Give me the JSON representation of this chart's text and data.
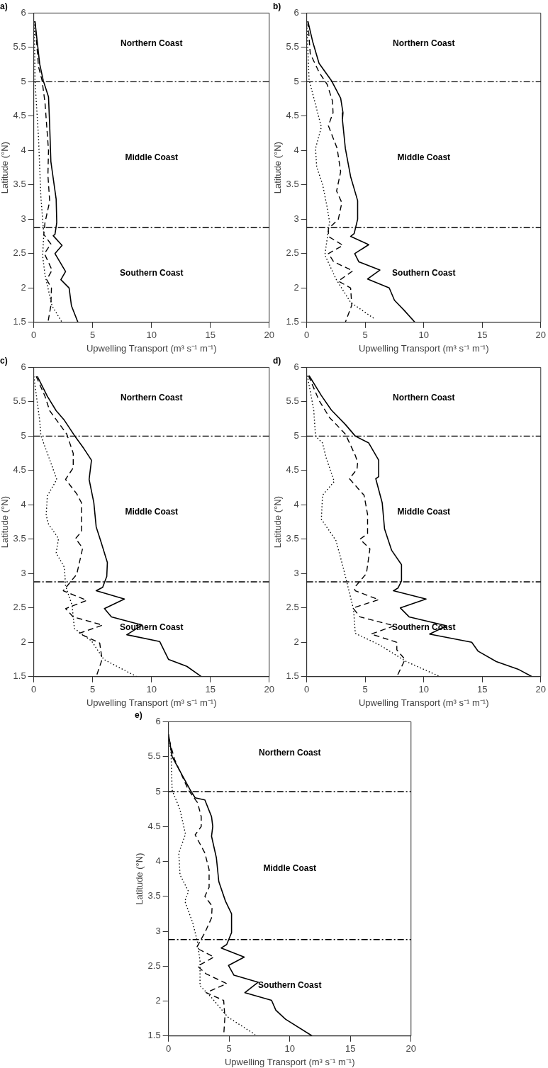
{
  "chart_data": [
    {
      "type": "line",
      "title": "a)",
      "xlabel": "Upwelling Transport (m³ s⁻¹ m⁻¹)",
      "ylabel": "Latitude (°N)",
      "xlim": [
        0,
        20
      ],
      "ylim": [
        1.5,
        6
      ],
      "xticks": [
        0,
        5,
        10,
        15,
        20
      ],
      "yticks": [
        1.5,
        2,
        2.5,
        3,
        3.5,
        4,
        4.5,
        5,
        5.5,
        6
      ],
      "grid": false,
      "ref_lines": [
        {
          "axis": "y",
          "value": 5
        },
        {
          "axis": "y",
          "value": 2.88
        }
      ],
      "annotations": [
        "Northern Coast",
        "Middle Coast",
        "Southern Coast"
      ],
      "series": [
        {
          "color": "#000000",
          "line_style": "solid",
          "x": [
            0.1,
            0.3,
            0.5,
            0.8,
            1.25,
            1.35,
            1.45,
            1.9,
            1.95,
            1.8,
            1.65,
            2.4,
            1.8,
            2.7,
            2.3,
            3.0,
            3.2,
            3.75
          ],
          "values": [
            5.88,
            5.57,
            5.26,
            5.02,
            4.78,
            4.36,
            3.84,
            3.29,
            2.95,
            2.78,
            2.76,
            2.62,
            2.5,
            2.24,
            2.12,
            2.0,
            1.74,
            1.5
          ]
        },
        {
          "color": "#000000",
          "line_style": "dashed",
          "x": [
            0.1,
            0.4,
            0.7,
            0.95,
            1.25,
            1.2,
            1.35,
            0.95,
            0.85,
            1.45,
            0.9,
            1.55,
            1.1,
            1.5,
            1.45,
            1.2
          ],
          "values": [
            5.88,
            5.22,
            5.02,
            4.7,
            4.0,
            3.64,
            3.26,
            2.95,
            2.78,
            2.64,
            2.5,
            2.26,
            2.12,
            2.0,
            1.74,
            1.5
          ]
        },
        {
          "color": "#000000",
          "line_style": "dotted",
          "x": [
            0.05,
            0.1,
            0.4,
            0.6,
            0.85,
            0.75,
            0.95,
            1.55,
            2.4
          ],
          "values": [
            5.88,
            5.02,
            4.19,
            3.33,
            2.78,
            2.47,
            2.19,
            1.74,
            1.5
          ]
        }
      ]
    },
    {
      "type": "line",
      "title": "b)",
      "xlabel": "Upwelling Transport (m³ s⁻¹ m⁻¹)",
      "ylabel": "Latitude (°N)",
      "xlim": [
        0,
        20
      ],
      "ylim": [
        1.5,
        6
      ],
      "xticks": [
        0,
        5,
        10,
        15,
        20
      ],
      "yticks": [
        1.5,
        2,
        2.5,
        3,
        3.5,
        4,
        4.5,
        5,
        5.5,
        6
      ],
      "grid": false,
      "ref_lines": [
        {
          "axis": "y",
          "value": 5
        },
        {
          "axis": "y",
          "value": 2.88
        }
      ],
      "annotations": [
        "Northern Coast",
        "Middle Coast",
        "Southern Coast"
      ],
      "series": [
        {
          "color": "#000000",
          "line_style": "solid",
          "x": [
            0.1,
            0.5,
            1.05,
            2.1,
            2.9,
            3.1,
            3.05,
            3.3,
            3.75,
            4.35,
            4.35,
            4.05,
            3.75,
            5.3,
            4.1,
            4.45,
            6.25,
            5.2,
            7.05,
            7.5,
            8.3,
            9.25
          ],
          "values": [
            5.88,
            5.59,
            5.27,
            5.02,
            4.76,
            4.55,
            4.45,
            4.03,
            3.62,
            3.27,
            3.0,
            2.79,
            2.75,
            2.63,
            2.5,
            2.38,
            2.26,
            2.13,
            2.0,
            1.82,
            1.68,
            1.5
          ]
        },
        {
          "color": "#000000",
          "line_style": "dashed",
          "x": [
            0.1,
            0.3,
            1.05,
            1.75,
            2.2,
            2.25,
            1.85,
            2.6,
            2.9,
            2.55,
            3.0,
            2.7,
            1.85,
            1.85,
            3.1,
            1.85,
            2.3,
            3.95,
            2.7,
            3.75,
            3.85,
            3.3
          ],
          "values": [
            5.88,
            5.41,
            5.14,
            4.96,
            4.72,
            4.55,
            4.36,
            4.03,
            3.69,
            3.41,
            3.24,
            3.0,
            2.86,
            2.75,
            2.62,
            2.5,
            2.38,
            2.25,
            2.1,
            2.0,
            1.75,
            1.5
          ]
        },
        {
          "color": "#000000",
          "line_style": "dotted",
          "x": [
            0,
            0.2,
            1.25,
            0.75,
            0.85,
            1.35,
            1.75,
            1.95,
            1.55,
            2.5,
            3.75,
            5.8
          ],
          "values": [
            5.88,
            5.03,
            4.34,
            4.03,
            3.76,
            3.51,
            3.17,
            2.96,
            2.48,
            2.13,
            1.79,
            1.55
          ]
        }
      ]
    },
    {
      "type": "line",
      "title": "c)",
      "xlabel": "Upwelling Transport (m³ s⁻¹ m⁻¹)",
      "ylabel": "Latitude (°N)",
      "xlim": [
        0,
        20
      ],
      "ylim": [
        1.5,
        6
      ],
      "xticks": [
        0,
        5,
        10,
        15,
        20
      ],
      "yticks": [
        1.5,
        2,
        2.5,
        3,
        3.5,
        4,
        4.5,
        5,
        5.5,
        6
      ],
      "grid": false,
      "ref_lines": [
        {
          "axis": "y",
          "value": 5
        },
        {
          "axis": "y",
          "value": 2.88
        }
      ],
      "annotations": [
        "Northern Coast",
        "Middle Coast",
        "Southern Coast"
      ],
      "series": [
        {
          "color": "#000000",
          "line_style": "solid",
          "x": [
            0.3,
            1.15,
            1.9,
            2.6,
            3.45,
            4.25,
            4.9,
            4.7,
            5.1,
            5.3,
            5.75,
            6.25,
            6.2,
            5.85,
            5.3,
            7.7,
            6.0,
            6.6,
            9.2,
            7.9,
            10.7,
            11.45,
            13.0,
            14.25
          ],
          "values": [
            5.87,
            5.58,
            5.37,
            5.23,
            5.01,
            4.82,
            4.65,
            4.37,
            4.03,
            3.68,
            3.44,
            3.16,
            2.96,
            2.8,
            2.75,
            2.63,
            2.49,
            2.37,
            2.25,
            2.11,
            2.01,
            1.75,
            1.65,
            1.5
          ]
        },
        {
          "color": "#000000",
          "line_style": "dashed",
          "x": [
            0.2,
            0.95,
            1.35,
            2.8,
            3.35,
            3.35,
            2.7,
            3.65,
            4.05,
            4.05,
            3.55,
            4.15,
            3.65,
            2.5,
            4.5,
            2.7,
            3.35,
            5.85,
            3.85,
            5.6,
            5.8,
            5.3
          ],
          "values": [
            5.87,
            5.58,
            5.37,
            5.03,
            4.75,
            4.54,
            4.37,
            4.16,
            4.03,
            3.61,
            3.51,
            3.37,
            2.99,
            2.75,
            2.61,
            2.49,
            2.37,
            2.25,
            2.13,
            1.99,
            1.75,
            1.5
          ]
        },
        {
          "color": "#000000",
          "line_style": "dotted",
          "x": [
            0,
            0.5,
            0.6,
            1.45,
            1.95,
            1.15,
            1.05,
            1.25,
            2.1,
            1.9,
            2.6,
            2.7,
            3.25,
            3.45,
            4.9,
            5.95,
            8.75
          ],
          "values": [
            5.87,
            5.23,
            5.01,
            4.61,
            4.37,
            4.13,
            3.85,
            3.72,
            3.51,
            3.3,
            3.09,
            2.82,
            2.54,
            2.2,
            2.02,
            1.75,
            1.5
          ]
        }
      ]
    },
    {
      "type": "line",
      "title": "d)",
      "xlabel": "Upwelling Transport (m³ s⁻¹ m⁻¹)",
      "ylabel": "Latitude (°N)",
      "xlim": [
        0,
        20
      ],
      "ylim": [
        1.5,
        6
      ],
      "xticks": [
        0,
        5,
        10,
        15,
        20
      ],
      "yticks": [
        1.5,
        2,
        2.5,
        3,
        3.5,
        4,
        4.5,
        5,
        5.5,
        6
      ],
      "grid": false,
      "ref_lines": [
        {
          "axis": "y",
          "value": 5
        },
        {
          "axis": "y",
          "value": 2.88
        }
      ],
      "annotations": [
        "Northern Coast",
        "Middle Coast",
        "Southern Coast"
      ],
      "series": [
        {
          "color": "#000000",
          "line_style": "solid",
          "x": [
            0.2,
            1.25,
            2.1,
            3.3,
            4.15,
            5.3,
            6.15,
            6.15,
            5.9,
            6.45,
            6.65,
            7.25,
            8.1,
            8.1,
            7.8,
            7.4,
            10.2,
            8.0,
            8.75,
            11.95,
            10.5,
            14.1,
            14.65,
            16.2,
            18.05,
            19.25
          ],
          "values": [
            5.88,
            5.59,
            5.38,
            5.17,
            5.0,
            4.9,
            4.65,
            4.41,
            4.38,
            4.03,
            3.65,
            3.34,
            3.13,
            2.89,
            2.79,
            2.75,
            2.63,
            2.5,
            2.37,
            2.24,
            2.12,
            2.0,
            1.87,
            1.72,
            1.61,
            1.5
          ]
        },
        {
          "color": "#000000",
          "line_style": "dashed",
          "x": [
            0.15,
            1.05,
            1.95,
            3.3,
            4.15,
            4.35,
            4.3,
            3.65,
            4.9,
            5.2,
            5.2,
            4.55,
            5.4,
            5.1,
            4.05,
            4.15,
            6.15,
            3.95,
            4.55,
            7.5,
            5.5,
            7.7,
            7.7,
            8.4,
            7.7
          ],
          "values": [
            5.88,
            5.52,
            5.27,
            5.03,
            4.72,
            4.62,
            4.52,
            4.38,
            4.14,
            3.86,
            3.58,
            3.5,
            3.36,
            3.0,
            2.79,
            2.75,
            2.62,
            2.5,
            2.37,
            2.24,
            2.12,
            2.0,
            1.89,
            1.75,
            1.5
          ]
        },
        {
          "color": "#000000",
          "line_style": "dotted",
          "x": [
            0.05,
            0.6,
            0.75,
            1.35,
            1.65,
            2.35,
            1.35,
            1.25,
            2.5,
            3.1,
            3.55,
            4.0,
            4.15,
            6.25,
            8.5,
            11.4
          ],
          "values": [
            5.88,
            5.38,
            5.0,
            4.9,
            4.69,
            4.34,
            4.14,
            3.79,
            3.48,
            3.1,
            2.79,
            2.48,
            2.13,
            1.96,
            1.72,
            1.5
          ]
        }
      ]
    },
    {
      "type": "line",
      "title": "e)",
      "xlabel": "Upwelling Transport (m³ s⁻¹ m⁻¹)",
      "ylabel": "Latitude (°N)",
      "xlim": [
        0,
        20
      ],
      "ylim": [
        1.5,
        6
      ],
      "xticks": [
        0,
        5,
        10,
        15,
        20
      ],
      "yticks": [
        1.5,
        2,
        2.5,
        3,
        3.5,
        4,
        4.5,
        5,
        5.5,
        6
      ],
      "grid": false,
      "ref_lines": [
        {
          "axis": "y",
          "value": 5
        },
        {
          "axis": "y",
          "value": 2.88
        }
      ],
      "annotations": [
        "Northern Coast",
        "Middle Coast",
        "Southern Coast"
      ],
      "series": [
        {
          "color": "#000000",
          "line_style": "solid",
          "x": [
            0,
            0.3,
            1.05,
            1.8,
            2.2,
            3.0,
            3.55,
            3.65,
            3.55,
            3.95,
            4.15,
            4.7,
            5.2,
            5.2,
            4.8,
            4.35,
            6.25,
            4.95,
            5.4,
            7.4,
            6.3,
            8.5,
            8.85,
            9.65,
            11.85
          ],
          "values": [
            5.82,
            5.5,
            5.26,
            5.02,
            4.91,
            4.88,
            4.64,
            4.5,
            4.36,
            4.05,
            3.71,
            3.43,
            3.25,
            2.98,
            2.81,
            2.76,
            2.63,
            2.51,
            2.37,
            2.27,
            2.12,
            2.01,
            1.87,
            1.74,
            1.5
          ]
        },
        {
          "color": "#000000",
          "line_style": "dashed",
          "x": [
            0.05,
            0.5,
            1.65,
            2.4,
            2.7,
            2.7,
            2.2,
            3.0,
            3.35,
            3.35,
            3.0,
            3.6,
            3.55,
            3.0,
            2.3,
            3.75,
            2.4,
            3.1,
            4.8,
            3.1,
            4.55,
            4.65,
            4.55
          ],
          "values": [
            5.75,
            5.46,
            5.02,
            4.84,
            4.64,
            4.5,
            4.38,
            4.12,
            3.88,
            3.63,
            3.5,
            3.36,
            3.19,
            2.98,
            2.76,
            2.63,
            2.5,
            2.39,
            2.25,
            2.12,
            2.01,
            1.77,
            1.5
          ]
        },
        {
          "color": "#000000",
          "line_style": "dotted",
          "x": [
            0,
            0.2,
            0.3,
            0.95,
            1.4,
            0.85,
            0.95,
            1.65,
            1.35,
            2.0,
            2.4,
            2.6,
            2.6,
            3.55,
            4.9,
            7.15
          ],
          "values": [
            5.7,
            5.6,
            5.02,
            4.74,
            4.39,
            4.12,
            3.81,
            3.57,
            3.43,
            3.12,
            2.84,
            2.57,
            2.22,
            2.05,
            1.77,
            1.52
          ]
        }
      ]
    }
  ]
}
